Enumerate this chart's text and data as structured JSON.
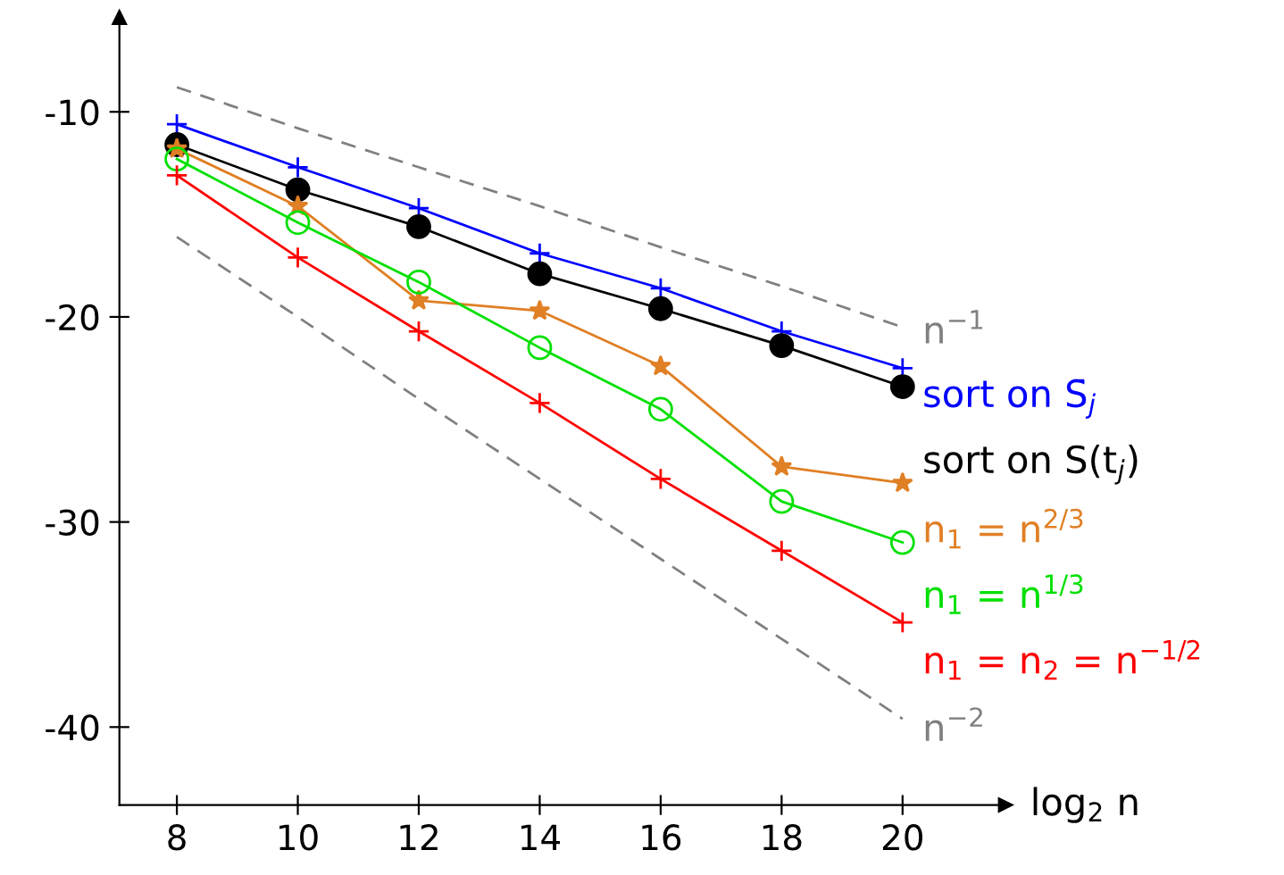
{
  "chart_data": {
    "type": "line",
    "xlabel": "log$_{2}$ n",
    "x": [
      8,
      10,
      12,
      14,
      16,
      18,
      20
    ],
    "series": [
      {
        "name": "sort on S̄$_{j}$",
        "color": "#0000ff",
        "marker": "cross",
        "values": [
          -10.6,
          -12.7,
          -14.7,
          -16.9,
          -18.6,
          -20.7,
          -22.5
        ]
      },
      {
        "name": "sort on S(t$_{j}$)",
        "color": "#000000",
        "marker": "circle",
        "values": [
          -11.6,
          -13.8,
          -15.6,
          -17.9,
          -19.6,
          -21.4,
          -23.4
        ]
      },
      {
        "name": "n$_{1}$ = n$^{2/3}$",
        "color": "#e07f24",
        "marker": "star",
        "values": [
          -11.8,
          -14.6,
          -19.2,
          -19.7,
          -22.4,
          -27.3,
          -28.1
        ]
      },
      {
        "name": "n$_{1}$ = n$^{1/3}$",
        "color": "#00e000",
        "marker": "circle",
        "values": [
          -12.3,
          -15.4,
          -18.3,
          -21.5,
          -24.5,
          -29.0,
          -31.0
        ]
      },
      {
        "name": "n$_{1}$ = n$_{2}$ = n$^{−1/2}$",
        "color": "#ff0000",
        "marker": "cross",
        "values": [
          -13.1,
          -17.1,
          -20.7,
          -24.2,
          -27.9,
          -31.4,
          -34.9
        ]
      },
      {
        "name": "n$^{−1}$",
        "color": "#808080",
        "marker": "none",
        "line_style": "dashed",
        "values": [
          -8.8,
          -10.8,
          -12.7,
          -14.6,
          -16.6,
          -18.5,
          -20.5
        ]
      },
      {
        "name": "n$^{−2}$",
        "color": "#808080",
        "marker": "none",
        "line_style": "dashed",
        "values": [
          -16.1,
          -20.0,
          -24.0,
          -27.9,
          -31.8,
          -35.7,
          -39.6
        ]
      }
    ],
    "xlim": [
      7.05,
      21.7
    ],
    "ylim": [
      -43.8,
      -5.4
    ],
    "xticks": [
      8,
      10,
      12,
      14,
      16,
      18,
      20
    ],
    "yticks": [
      {
        "value": -10,
        "label": "-10"
      },
      {
        "value": -20,
        "label": "-20"
      },
      {
        "value": -30,
        "label": "-30"
      },
      {
        "value": -40,
        "label": "-40"
      }
    ],
    "grid": false,
    "legend": false
  }
}
